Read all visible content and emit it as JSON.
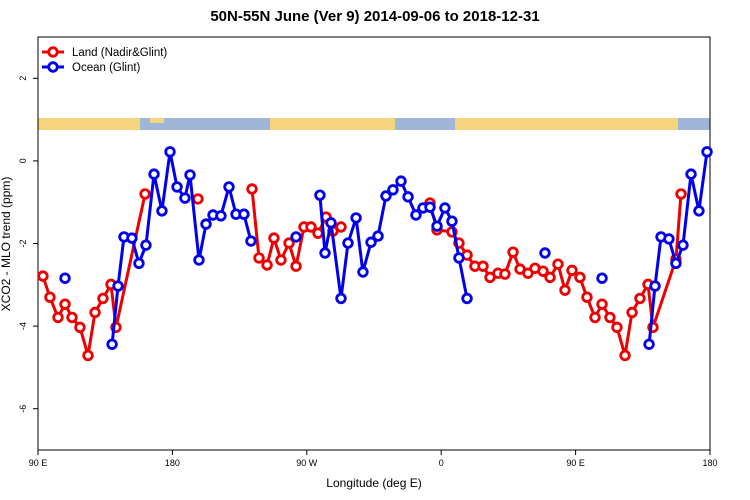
{
  "chart_data": {
    "type": "line",
    "title": "50N-55N June (Ver 9)   2014-09-06 to 2018-12-31",
    "x_label": "Longitude (deg E)",
    "y_label": "XCO2 - MLO trend (ppm)",
    "xlim": [
      90,
      540
    ],
    "ylim": [
      -7,
      3
    ],
    "xticks": [
      {
        "value": 90,
        "label": "90 E"
      },
      180,
      {
        "value": 270,
        "label": "90 W"
      },
      {
        "value": 360,
        "label": "0"
      },
      {
        "value": 450,
        "label": "90 E"
      },
      {
        "value": 540,
        "label": "180"
      }
    ],
    "yticks": [
      -6,
      -4,
      -2,
      0,
      2
    ],
    "legend": "top-left",
    "series": [
      {
        "name": "Land (Nadir&Glint)",
        "color": "#ee0000",
        "x": [
          93.3,
          98.0,
          103.4,
          108.1,
          112.8,
          118.1,
          123.5,
          128.2,
          133.5,
          138.9,
          142.2,
          161.7,
          null,
          197.1,
          null,
          233.3,
          238.0,
          243.4,
          248.0,
          252.7,
          258.1,
          262.8,
          268.1,
          272.8,
          277.5,
          282.9,
          287.5,
          292.9,
          null,
          352.5,
          357.2,
          367.2,
          371.9,
          377.3,
          382.6,
          388.0,
          392.7,
          398.0,
          402.7,
          408.1,
          412.8,
          418.1,
          422.8,
          428.2,
          432.9,
          438.2,
          442.9,
          447.6,
          452.9,
          457.6,
          463.0,
          467.7,
          473.0,
          477.7,
          483.1,
          487.8,
          493.1,
          498.5,
          501.8,
          517.2,
          520.6
        ],
        "values": [
          -2.79,
          -3.3,
          -3.79,
          -3.47,
          -3.79,
          -4.03,
          -4.71,
          -3.67,
          -3.33,
          -2.99,
          -4.03,
          -0.8,
          null,
          -0.92,
          null,
          -0.68,
          -2.35,
          -2.52,
          -1.87,
          -2.4,
          -1.99,
          -2.55,
          -1.6,
          -1.6,
          -1.75,
          -1.36,
          -1.7,
          -1.6,
          null,
          -1.02,
          -1.67,
          -1.72,
          -1.99,
          -2.28,
          -2.55,
          -2.55,
          -2.82,
          -2.72,
          -2.74,
          -2.21,
          -2.62,
          -2.72,
          -2.6,
          -2.67,
          -2.82,
          -2.5,
          -3.13,
          -2.65,
          -2.82,
          -3.3,
          -3.79,
          -3.47,
          -3.79,
          -4.03,
          -4.71,
          -3.67,
          -3.33,
          -2.99,
          -4.03,
          -2.38,
          -0.8
        ]
      },
      {
        "name": "Ocean (Glint)",
        "color": "#0000ee",
        "x": [
          108.1,
          null,
          139.6,
          143.6,
          147.6,
          152.9,
          157.6,
          162.3,
          167.7,
          173.0,
          178.4,
          183.1,
          188.4,
          191.8,
          197.8,
          202.5,
          207.2,
          212.5,
          217.9,
          222.6,
          227.9,
          232.6,
          null,
          262.8,
          null,
          278.8,
          282.2,
          286.2,
          292.9,
          297.6,
          303.0,
          307.6,
          313.0,
          317.7,
          323.0,
          327.7,
          333.1,
          337.8,
          343.1,
          347.8,
          352.5,
          357.2,
          362.5,
          367.2,
          371.9,
          377.3,
          null,
          429.5,
          null,
          467.7,
          null,
          499.2,
          503.2,
          507.2,
          512.5,
          517.2,
          521.9,
          527.3,
          532.6,
          538.0
        ],
        "values": [
          -2.84,
          null,
          -4.44,
          -3.03,
          -1.84,
          -1.87,
          -2.48,
          -2.04,
          -0.32,
          -1.21,
          0.22,
          -0.63,
          -0.9,
          -0.34,
          -2.4,
          -1.53,
          -1.31,
          -1.33,
          -0.63,
          -1.29,
          -1.29,
          -1.94,
          null,
          -1.84,
          null,
          -0.83,
          -2.23,
          -1.5,
          -3.33,
          -1.99,
          -1.38,
          -2.69,
          -1.97,
          -1.82,
          -0.85,
          -0.7,
          -0.49,
          -0.87,
          -1.31,
          -1.14,
          -1.12,
          -1.58,
          -1.14,
          -1.46,
          -2.35,
          -3.33,
          null,
          -2.23,
          null,
          -2.84,
          null,
          -4.44,
          -3.03,
          -1.84,
          -1.89,
          -2.48,
          -2.04,
          -0.32,
          -1.21,
          0.22
        ]
      }
    ]
  }
}
